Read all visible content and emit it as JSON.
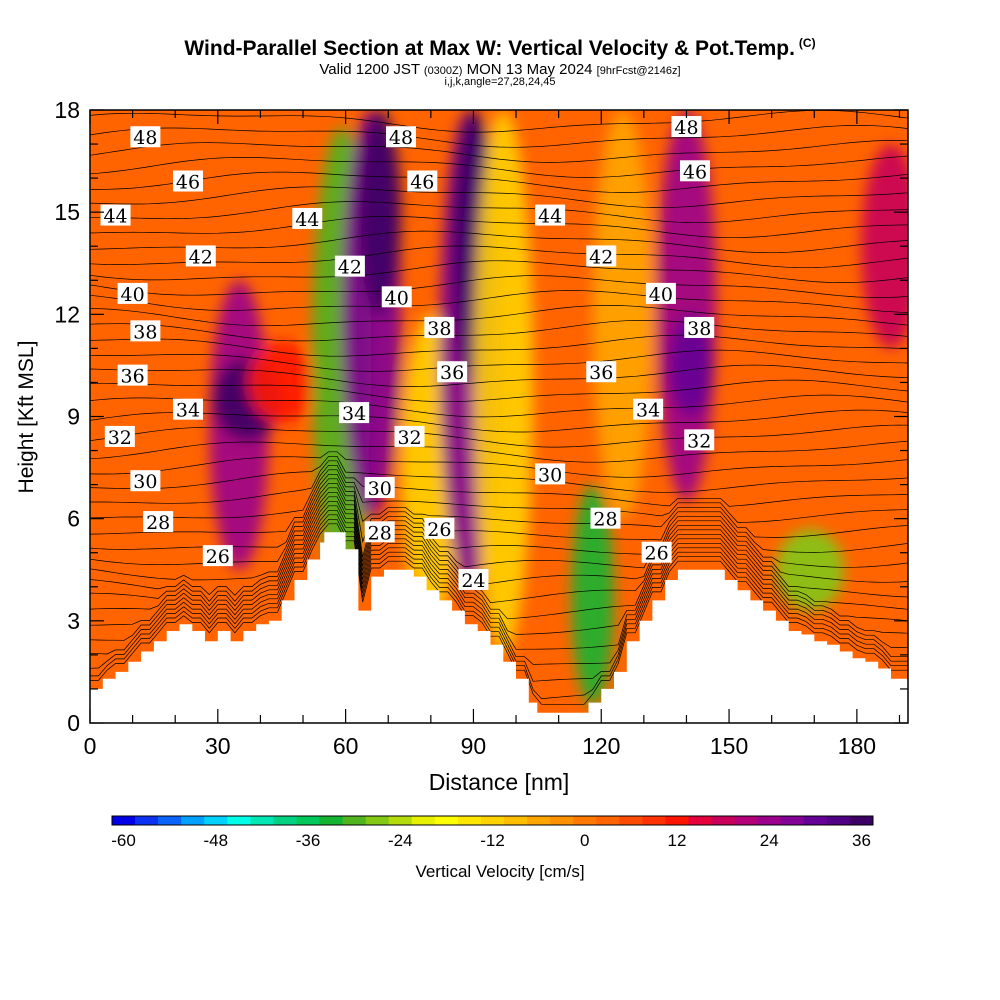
{
  "titles": {
    "main": "Wind-Parallel Section at Max W: Vertical Velocity & Pot.Temp.",
    "copyright": "(C)",
    "valid_prefix": "Valid 1200 JST",
    "valid_utc": "(0300Z)",
    "valid_date": "MON 13 May 2024",
    "forecast": "[9hrFcst@2146z]",
    "indices": "i,j,k,angle=27,28,24,45"
  },
  "colorbar": {
    "label": "Vertical Velocity [cm/s]",
    "min": -60,
    "max": 39,
    "step": 3,
    "tick_values": [
      -60,
      -48,
      -36,
      -24,
      -12,
      0,
      12,
      24,
      36
    ],
    "tick_labels": [
      "-60",
      "-48",
      "-36",
      "-24",
      "-12",
      "0",
      "12",
      "24",
      "36"
    ],
    "colors": [
      "#0000e6",
      "#0a32f0",
      "#0a64fa",
      "#00a0ff",
      "#00d2ff",
      "#00ffe6",
      "#00e6b4",
      "#00d282",
      "#00c85a",
      "#14b432",
      "#50b41e",
      "#82c814",
      "#b4dc0a",
      "#e6f000",
      "#ffff00",
      "#ffe600",
      "#ffd200",
      "#ffbe00",
      "#ffa500",
      "#ff9100",
      "#ff7800",
      "#ff6400",
      "#ff4b00",
      "#ff3200",
      "#ff1400",
      "#e6003c",
      "#c8005a",
      "#b40078",
      "#9b008c",
      "#820096",
      "#640096",
      "#500082",
      "#3c0064"
    ]
  },
  "chart_data": {
    "type": "heatmap",
    "description_kind": "vertical cross-section: filled contours of vertical velocity with potential temperature contour lines",
    "xlabel": "Distance [nm]",
    "ylabel": "Height [Kft MSL]",
    "xlim": [
      0,
      192
    ],
    "ylim": [
      0,
      18
    ],
    "x_ticks": [
      0,
      30,
      60,
      90,
      120,
      150,
      180
    ],
    "y_ticks": [
      0,
      3,
      6,
      9,
      12,
      15,
      18
    ],
    "colorbar_variable": "Vertical Velocity [cm/s]",
    "terrain_profile": [
      [
        0,
        1.0
      ],
      [
        3,
        1.0
      ],
      [
        3,
        1.3
      ],
      [
        6,
        1.3
      ],
      [
        6,
        1.5
      ],
      [
        9,
        1.5
      ],
      [
        9,
        1.8
      ],
      [
        12,
        1.8
      ],
      [
        12,
        2.1
      ],
      [
        15,
        2.1
      ],
      [
        15,
        2.4
      ],
      [
        18,
        2.4
      ],
      [
        18,
        2.7
      ],
      [
        21,
        2.7
      ],
      [
        21,
        2.9
      ],
      [
        24,
        2.9
      ],
      [
        24,
        2.7
      ],
      [
        27,
        2.7
      ],
      [
        27,
        2.4
      ],
      [
        30,
        2.4
      ],
      [
        30,
        2.7
      ],
      [
        33,
        2.7
      ],
      [
        33,
        2.4
      ],
      [
        36,
        2.4
      ],
      [
        36,
        2.7
      ],
      [
        39,
        2.7
      ],
      [
        39,
        2.9
      ],
      [
        42,
        2.9
      ],
      [
        42,
        3.0
      ],
      [
        45,
        3.0
      ],
      [
        45,
        3.6
      ],
      [
        48,
        3.6
      ],
      [
        48,
        4.2
      ],
      [
        51,
        4.2
      ],
      [
        51,
        4.8
      ],
      [
        54,
        4.8
      ],
      [
        54,
        5.3
      ],
      [
        55,
        5.3
      ],
      [
        55,
        5.6
      ],
      [
        60,
        5.6
      ],
      [
        60,
        5.1
      ],
      [
        63,
        5.1
      ],
      [
        63,
        3.3
      ],
      [
        66,
        3.3
      ],
      [
        66,
        4.3
      ],
      [
        69,
        4.3
      ],
      [
        69,
        4.5
      ],
      [
        76,
        4.5
      ],
      [
        76,
        4.3
      ],
      [
        79,
        4.3
      ],
      [
        79,
        3.9
      ],
      [
        82,
        3.9
      ],
      [
        82,
        3.6
      ],
      [
        85,
        3.6
      ],
      [
        85,
        3.3
      ],
      [
        88,
        3.3
      ],
      [
        88,
        2.9
      ],
      [
        91,
        2.9
      ],
      [
        91,
        2.7
      ],
      [
        94,
        2.7
      ],
      [
        94,
        2.3
      ],
      [
        97,
        2.3
      ],
      [
        97,
        1.8
      ],
      [
        100,
        1.8
      ],
      [
        100,
        1.3
      ],
      [
        103,
        1.3
      ],
      [
        103,
        0.6
      ],
      [
        105,
        0.6
      ],
      [
        105,
        0.3
      ],
      [
        117,
        0.3
      ],
      [
        117,
        0.6
      ],
      [
        120,
        0.6
      ],
      [
        120,
        1.0
      ],
      [
        123,
        1.0
      ],
      [
        123,
        1.5
      ],
      [
        126,
        1.5
      ],
      [
        126,
        2.4
      ],
      [
        129,
        2.4
      ],
      [
        129,
        3.0
      ],
      [
        132,
        3.0
      ],
      [
        132,
        3.6
      ],
      [
        135,
        3.6
      ],
      [
        135,
        4.2
      ],
      [
        138,
        4.2
      ],
      [
        138,
        4.5
      ],
      [
        149,
        4.5
      ],
      [
        149,
        4.2
      ],
      [
        152,
        4.2
      ],
      [
        152,
        3.9
      ],
      [
        155,
        3.9
      ],
      [
        155,
        3.6
      ],
      [
        158,
        3.6
      ],
      [
        158,
        3.3
      ],
      [
        161,
        3.3
      ],
      [
        161,
        3.0
      ],
      [
        164,
        3.0
      ],
      [
        164,
        2.7
      ],
      [
        167,
        2.7
      ],
      [
        167,
        2.6
      ],
      [
        170,
        2.6
      ],
      [
        170,
        2.4
      ],
      [
        173,
        2.4
      ],
      [
        173,
        2.3
      ],
      [
        176,
        2.3
      ],
      [
        176,
        2.1
      ],
      [
        179,
        2.1
      ],
      [
        179,
        1.9
      ],
      [
        182,
        1.9
      ],
      [
        182,
        1.8
      ],
      [
        185,
        1.8
      ],
      [
        185,
        1.6
      ],
      [
        188,
        1.6
      ],
      [
        188,
        1.3
      ],
      [
        192,
        1.3
      ]
    ],
    "vertical_velocity_features": [
      {
        "x": 35,
        "y_range": [
          4.5,
          13
        ],
        "w": 26
      },
      {
        "x": 37,
        "y": 9.5,
        "w": 36
      },
      {
        "x": 45,
        "y": 10,
        "w": 14
      },
      {
        "x": 59,
        "y_range": [
          4,
          17.5
        ],
        "w": -30
      },
      {
        "x": 66,
        "y_range": [
          6,
          18
        ],
        "w": 27
      },
      {
        "x": 68,
        "y_range": [
          12,
          18
        ],
        "w": 36
      },
      {
        "x": 80,
        "y_range": [
          3,
          12
        ],
        "w": -10
      },
      {
        "x": 89,
        "y_range": [
          4,
          18
        ],
        "w": 27
      },
      {
        "x": 90,
        "y_range": [
          10,
          18
        ],
        "w": 36
      },
      {
        "x": 97,
        "y_range": [
          2,
          18
        ],
        "w": -10
      },
      {
        "x": 118,
        "y_range": [
          0.5,
          7
        ],
        "w": -33
      },
      {
        "x": 125,
        "y_range": [
          6,
          18
        ],
        "w": -6
      },
      {
        "x": 140,
        "y_range": [
          6.5,
          18
        ],
        "w": 25
      },
      {
        "x": 141,
        "y_range": [
          9,
          12
        ],
        "w": 32
      },
      {
        "x": 169,
        "y": 4.5,
        "w": -27
      },
      {
        "x": 188,
        "y_range": [
          11,
          17
        ],
        "w": 18
      }
    ],
    "theta_contour_labels": [
      {
        "text": "48",
        "x": 13,
        "y": 17.2
      },
      {
        "text": "48",
        "x": 73,
        "y": 17.2
      },
      {
        "text": "48",
        "x": 140,
        "y": 17.5
      },
      {
        "text": "46",
        "x": 23,
        "y": 15.9
      },
      {
        "text": "46",
        "x": 78,
        "y": 15.9
      },
      {
        "text": "46",
        "x": 142,
        "y": 16.2
      },
      {
        "text": "44",
        "x": 6,
        "y": 14.9
      },
      {
        "text": "44",
        "x": 51,
        "y": 14.8
      },
      {
        "text": "44",
        "x": 108,
        "y": 14.9
      },
      {
        "text": "42",
        "x": 26,
        "y": 13.7
      },
      {
        "text": "42",
        "x": 61,
        "y": 13.4
      },
      {
        "text": "42",
        "x": 120,
        "y": 13.7
      },
      {
        "text": "40",
        "x": 10,
        "y": 12.6
      },
      {
        "text": "40",
        "x": 72,
        "y": 12.5
      },
      {
        "text": "40",
        "x": 134,
        "y": 12.6
      },
      {
        "text": "38",
        "x": 13,
        "y": 11.5
      },
      {
        "text": "38",
        "x": 82,
        "y": 11.6
      },
      {
        "text": "38",
        "x": 143,
        "y": 11.6
      },
      {
        "text": "36",
        "x": 10,
        "y": 10.2
      },
      {
        "text": "36",
        "x": 85,
        "y": 10.3
      },
      {
        "text": "36",
        "x": 120,
        "y": 10.3
      },
      {
        "text": "34",
        "x": 23,
        "y": 9.2
      },
      {
        "text": "34",
        "x": 62,
        "y": 9.1
      },
      {
        "text": "34",
        "x": 131,
        "y": 9.2
      },
      {
        "text": "32",
        "x": 7,
        "y": 8.4
      },
      {
        "text": "32",
        "x": 75,
        "y": 8.4
      },
      {
        "text": "32",
        "x": 143,
        "y": 8.3
      },
      {
        "text": "30",
        "x": 13,
        "y": 7.1
      },
      {
        "text": "30",
        "x": 68,
        "y": 6.9
      },
      {
        "text": "30",
        "x": 108,
        "y": 7.3
      },
      {
        "text": "28",
        "x": 16,
        "y": 5.9
      },
      {
        "text": "28",
        "x": 68,
        "y": 5.6
      },
      {
        "text": "28",
        "x": 121,
        "y": 6.0
      },
      {
        "text": "26",
        "x": 30,
        "y": 4.9
      },
      {
        "text": "26",
        "x": 82,
        "y": 5.7
      },
      {
        "text": "26",
        "x": 133,
        "y": 5.0
      },
      {
        "text": "24",
        "x": 90,
        "y": 4.2
      }
    ]
  }
}
